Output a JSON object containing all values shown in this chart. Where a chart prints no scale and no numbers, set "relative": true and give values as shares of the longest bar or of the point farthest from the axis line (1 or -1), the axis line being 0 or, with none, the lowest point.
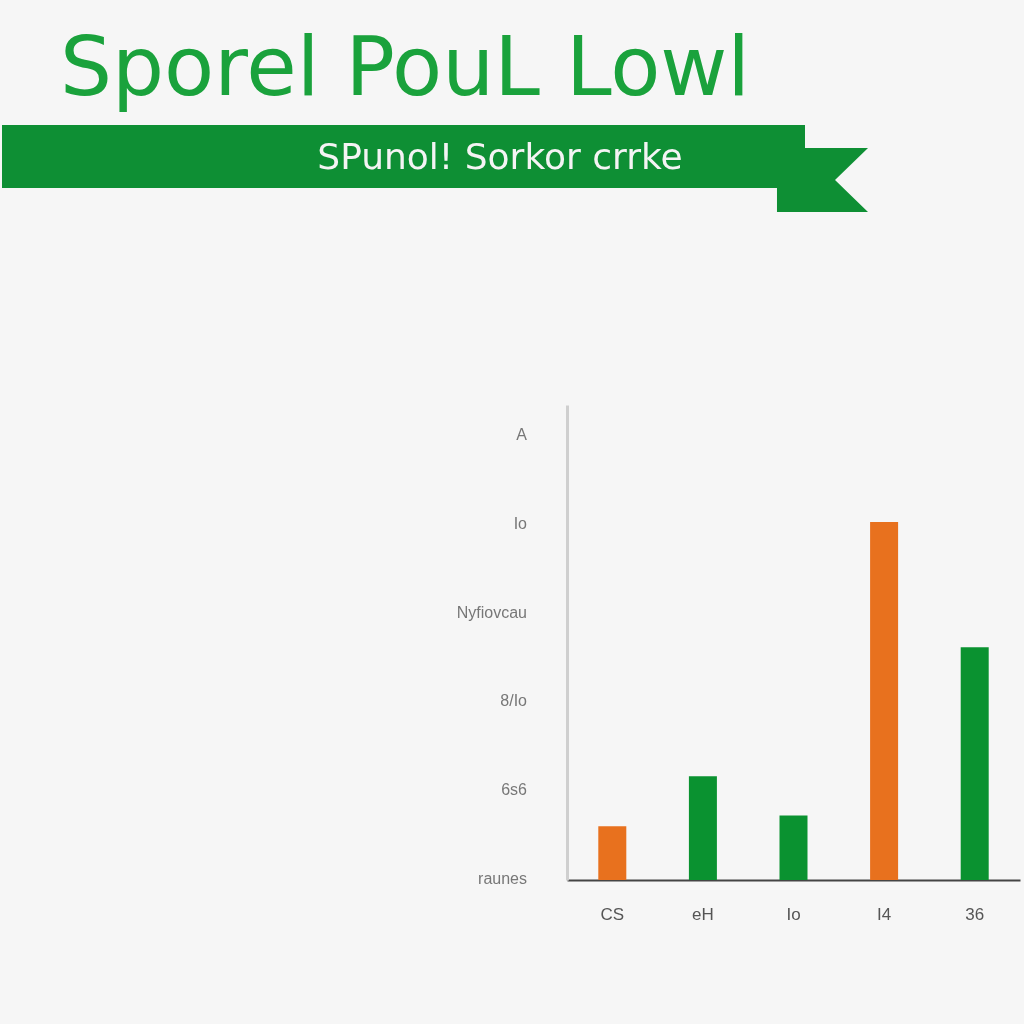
{
  "chart_data": {
    "type": "bar",
    "title": "Sporel PouL Lowl",
    "subtitle": "SPunol! Sorkor crrke",
    "categories": [
      "CS",
      "eH",
      "Io",
      "I4",
      "36"
    ],
    "values": [
      0.15,
      0.29,
      0.18,
      1,
      0.65
    ],
    "colors": [
      "#e8711e",
      "#0a9230",
      "#0a9230",
      "#e8711e",
      "#0a9230"
    ],
    "relative": true,
    "annotations": [
      "A",
      "Io",
      "Nyfiovcau",
      "8/Io",
      "6s6",
      "raunes"
    ]
  }
}
